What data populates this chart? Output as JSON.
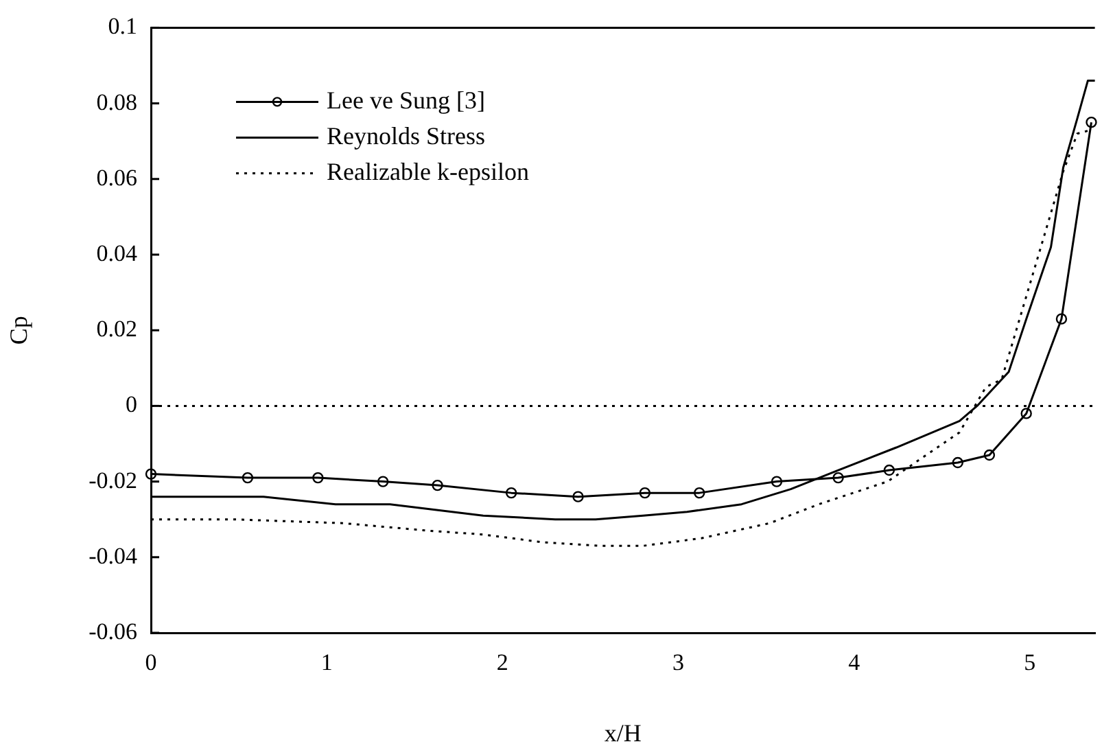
{
  "chart_data": {
    "type": "line",
    "xlabel": "x/H",
    "ylabel": "Cp",
    "xlim": [
      0,
      5.37
    ],
    "xticks": [
      0,
      1,
      2,
      3,
      4,
      5
    ],
    "ylim": [
      -0.06,
      0.1
    ],
    "yticks": [
      -0.06,
      -0.04,
      -0.02,
      0,
      0.02,
      0.04,
      0.06,
      0.08,
      0.1
    ],
    "grid": false,
    "legend": "top left",
    "ref_lines": [
      {
        "axis": "y",
        "value": 0,
        "color": "#000000",
        "line_style": "dotted"
      }
    ],
    "series": [
      {
        "name": "Lee ve Sung [3]",
        "color": "#000000",
        "marker": "circle",
        "line_style": "solid",
        "x": [
          0,
          0.55,
          0.95,
          1.32,
          1.63,
          2.05,
          2.43,
          2.81,
          3.12,
          3.56,
          3.91,
          4.2,
          4.59,
          4.77,
          4.98,
          5.18,
          5.35
        ],
        "values": [
          -0.018,
          -0.019,
          -0.019,
          -0.02,
          -0.021,
          -0.023,
          -0.024,
          -0.023,
          -0.023,
          -0.02,
          -0.019,
          -0.017,
          -0.015,
          -0.013,
          -0.002,
          0.023,
          0.075
        ]
      },
      {
        "name": "Reynolds Stress",
        "color": "#000000",
        "marker": "none",
        "line_style": "solid",
        "x": [
          0,
          0.64,
          1.05,
          1.36,
          1.89,
          2.3,
          2.53,
          2.8,
          3.05,
          3.36,
          3.64,
          3.91,
          4.24,
          4.6,
          4.7,
          4.88,
          4.98,
          5.12,
          5.19,
          5.27,
          5.33,
          5.37
        ],
        "values": [
          -0.024,
          -0.024,
          -0.026,
          -0.026,
          -0.029,
          -0.03,
          -0.03,
          -0.029,
          -0.028,
          -0.026,
          -0.022,
          -0.017,
          -0.011,
          -0.004,
          0.0,
          0.009,
          0.023,
          0.042,
          0.063,
          0.076,
          0.086,
          0.086
        ]
      },
      {
        "name": "Realizable k-epsilon",
        "color": "#000000",
        "marker": "none",
        "line_style": "dotted",
        "x": [
          0,
          0.47,
          1.09,
          1.58,
          1.89,
          2.22,
          2.55,
          2.8,
          3.13,
          3.52,
          3.8,
          4.19,
          4.6,
          4.75,
          4.84,
          5.19,
          5.27,
          5.35
        ],
        "values": [
          -0.03,
          -0.03,
          -0.031,
          -0.033,
          -0.034,
          -0.036,
          -0.037,
          -0.037,
          -0.035,
          -0.031,
          -0.026,
          -0.02,
          -0.007,
          0.005,
          0.007,
          0.062,
          0.072,
          0.073
        ]
      }
    ]
  }
}
